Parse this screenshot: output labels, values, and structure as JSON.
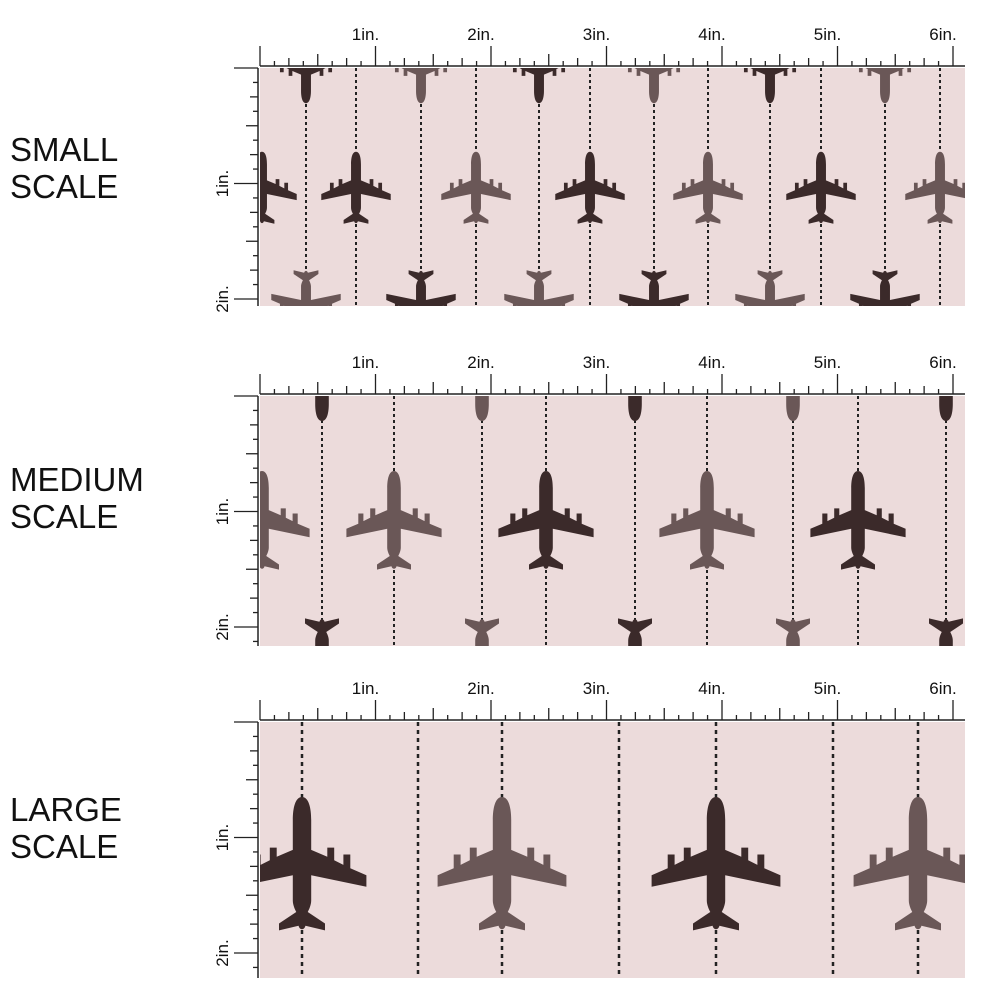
{
  "colors": {
    "swatch_background": "#ecdbdb",
    "plane": "#3b2a2a",
    "plane_light": "#6a5757",
    "ruler": "#222222",
    "dashed_line": "#222222"
  },
  "ruler_labels": {
    "top": [
      "1in.",
      "2in.",
      "3in.",
      "4in.",
      "5in.",
      "6in."
    ],
    "side": [
      "1in.",
      "2in."
    ]
  },
  "panels": [
    {
      "id": "small",
      "label_line1": "SMALL",
      "label_line2": "SCALE",
      "plane_scale": 0.62
    },
    {
      "id": "medium",
      "label_line1": "MEDIUM",
      "label_line2": "SCALE",
      "plane_scale": 0.85
    },
    {
      "id": "large",
      "label_line1": "LARGE",
      "label_line2": "SCALE",
      "plane_scale": 1.15
    }
  ],
  "icons": {
    "airplane": "airplane-icon"
  }
}
